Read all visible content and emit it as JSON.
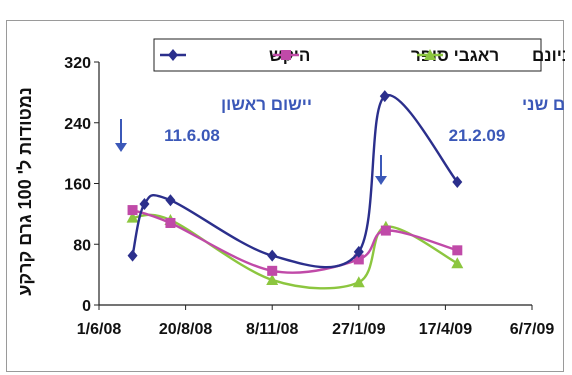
{
  "chart_data": {
    "type": "line",
    "ylabel": "נמטודות ל' 100 גרם קרקע",
    "xlabel": "",
    "ylim": [
      0,
      320
    ],
    "y_ticks": [
      "0",
      "80",
      "160",
      "240",
      "320"
    ],
    "x_tick_labels": [
      "1/6/08",
      "20/8/08",
      "8/11/08",
      "27/1/09",
      "17/4/09",
      "6/7/09"
    ],
    "x_tick_dates": [
      "2008-06-01",
      "2008-08-20",
      "2008-11-08",
      "2009-01-27",
      "2009-04-17",
      "2009-07-06"
    ],
    "xlim": [
      "2008-06-01",
      "2009-07-06"
    ],
    "grid": false,
    "legend_position": "top",
    "series": [
      {
        "name": "היקש",
        "color": "#2b2f8c",
        "marker": "diamond",
        "points": [
          {
            "x": "2008-07-02",
            "y": 65
          },
          {
            "x": "2008-07-13",
            "y": 133
          },
          {
            "x": "2008-08-06",
            "y": 138
          },
          {
            "x": "2008-11-08",
            "y": 65
          },
          {
            "x": "2009-01-27",
            "y": 70
          },
          {
            "x": "2009-02-20",
            "y": 275
          },
          {
            "x": "2009-04-28",
            "y": 162
          }
        ]
      },
      {
        "name": "ראגבי סופר",
        "color": "#c04aa8",
        "marker": "square",
        "points": [
          {
            "x": "2008-07-02",
            "y": 125
          },
          {
            "x": "2008-08-06",
            "y": 108
          },
          {
            "x": "2008-11-08",
            "y": 45
          },
          {
            "x": "2009-01-27",
            "y": 60
          },
          {
            "x": "2009-02-21",
            "y": 98
          },
          {
            "x": "2009-04-28",
            "y": 72
          }
        ]
      },
      {
        "name": "ביונם",
        "color": "#8cc63f",
        "marker": "triangle",
        "points": [
          {
            "x": "2008-07-02",
            "y": 115
          },
          {
            "x": "2008-08-06",
            "y": 112
          },
          {
            "x": "2008-11-08",
            "y": 33
          },
          {
            "x": "2009-01-27",
            "y": 30
          },
          {
            "x": "2009-02-21",
            "y": 103
          },
          {
            "x": "2009-04-28",
            "y": 55
          }
        ]
      }
    ],
    "annotations": [
      {
        "title": "יישום ראשון",
        "date_label": "11.6.08"
      },
      {
        "title": "יישום שני",
        "date_label": "21.2.09"
      }
    ]
  }
}
